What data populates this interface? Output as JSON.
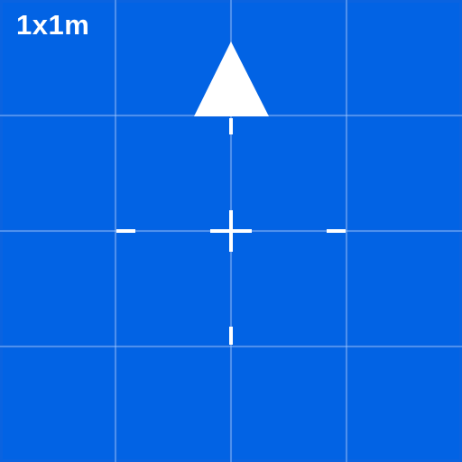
{
  "scale_label": "1x1m",
  "colors": {
    "tile": "#0263e4",
    "gridline": "#a0c8ff",
    "marker": "#ffffff"
  },
  "icons": {
    "north_arrow": "north-arrow-icon",
    "center": "crosshair-icon"
  }
}
